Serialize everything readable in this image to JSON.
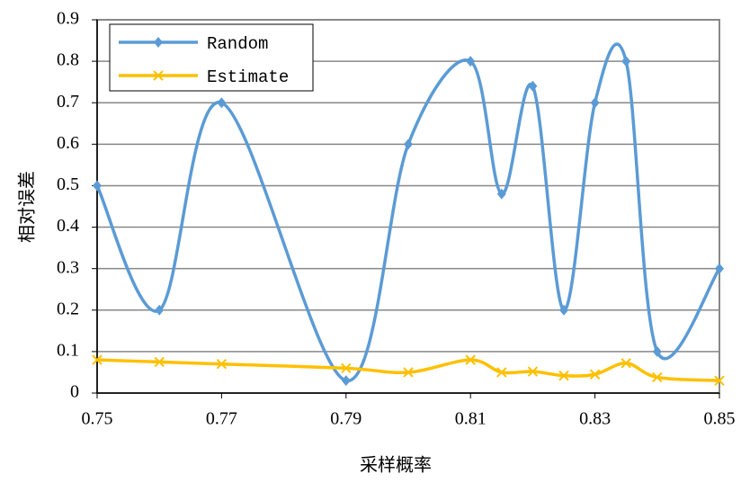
{
  "chart_data": {
    "type": "line",
    "xlabel": "采样概率",
    "ylabel": "相对误差",
    "x": [
      0.75,
      0.76,
      0.77,
      0.79,
      0.8,
      0.81,
      0.815,
      0.82,
      0.825,
      0.83,
      0.835,
      0.84,
      0.85
    ],
    "series": [
      {
        "name": "Random",
        "color": "#5b9bd5",
        "marker": "diamond",
        "values": [
          0.5,
          0.2,
          0.7,
          0.03,
          0.6,
          0.8,
          0.48,
          0.74,
          0.2,
          0.7,
          0.8,
          0.1,
          0.3
        ]
      },
      {
        "name": "Estimate",
        "color": "#ffc000",
        "marker": "x",
        "values": [
          0.08,
          0.075,
          0.07,
          0.06,
          0.05,
          0.08,
          0.05,
          0.052,
          0.042,
          0.045,
          0.072,
          0.038,
          0.03
        ]
      }
    ],
    "xlim": [
      0.75,
      0.85
    ],
    "xticks": [
      0.75,
      0.77,
      0.79,
      0.81,
      0.83,
      0.85
    ],
    "ylim": [
      0,
      0.9
    ],
    "yticks": [
      0,
      0.1,
      0.2,
      0.3,
      0.4,
      0.5,
      0.6,
      0.7,
      0.8,
      0.9
    ],
    "grid": true,
    "smooth": true,
    "legend": "upper left"
  }
}
